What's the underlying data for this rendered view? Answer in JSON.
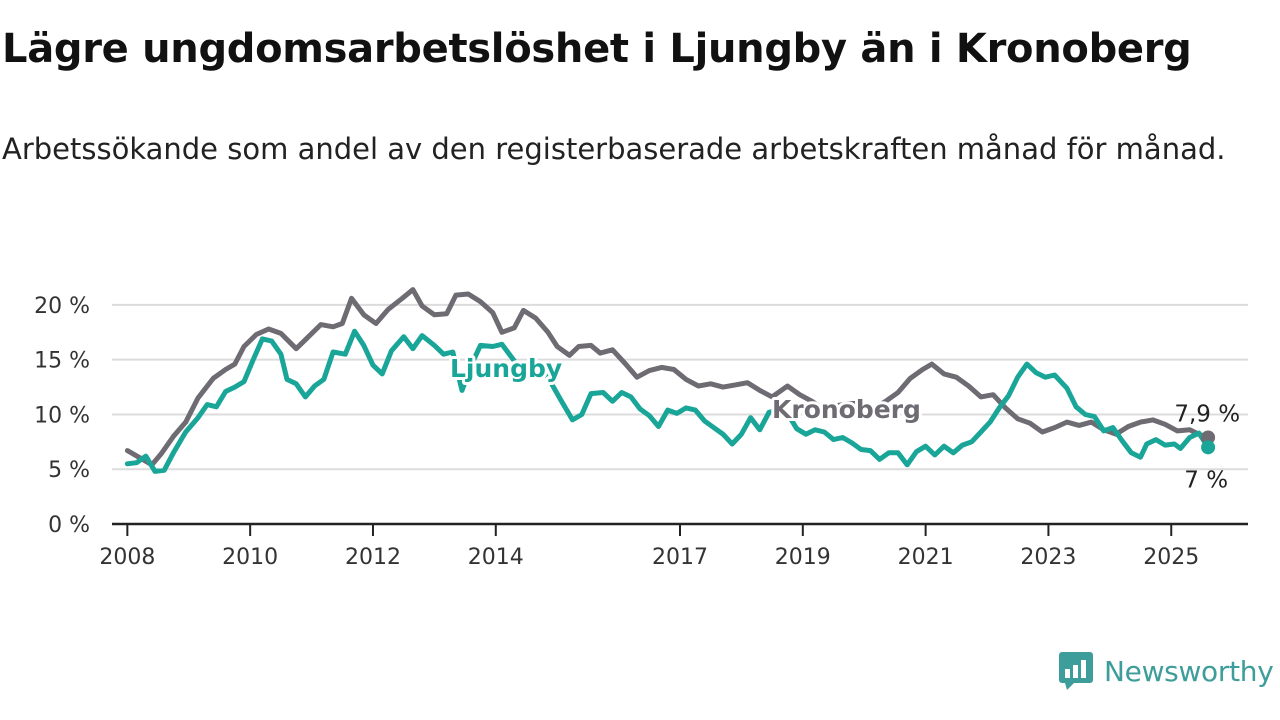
{
  "title": "Lägre ungdomsarbetslöshet i Ljungby än i Kronoberg",
  "subtitle": "Arbetssökande som andel av den registerbaserade arbetskraften månad för månad.",
  "brand": {
    "name": "Newsworthy",
    "color": "#3d9d9a"
  },
  "chart_data": {
    "type": "line",
    "x_unit": "year",
    "x_ticks": [
      2008,
      2010,
      2012,
      2014,
      2017,
      2019,
      2021,
      2023,
      2025
    ],
    "x_tick_labels": [
      "2008",
      "2010",
      "2012",
      "2014",
      "2017",
      "2019",
      "2021",
      "2023",
      "2025"
    ],
    "y_ticks": [
      0,
      5,
      10,
      15,
      20
    ],
    "y_tick_labels": [
      "0 %",
      "5 %",
      "10 %",
      "15 %",
      "20 %"
    ],
    "ylim": [
      0,
      22
    ],
    "xlim": [
      2007.75,
      2026.25
    ],
    "grid": true,
    "series": [
      {
        "name": "Kronoberg",
        "color": "#6e6b73",
        "end_label": "7,9 %",
        "points": [
          [
            2008.0,
            6.7
          ],
          [
            2008.25,
            5.9
          ],
          [
            2008.4,
            5.4
          ],
          [
            2008.55,
            6.4
          ],
          [
            2008.75,
            8.0
          ],
          [
            2008.95,
            9.3
          ],
          [
            2009.15,
            11.5
          ],
          [
            2009.4,
            13.3
          ],
          [
            2009.6,
            14.1
          ],
          [
            2009.75,
            14.6
          ],
          [
            2009.9,
            16.2
          ],
          [
            2010.1,
            17.3
          ],
          [
            2010.3,
            17.8
          ],
          [
            2010.5,
            17.4
          ],
          [
            2010.75,
            16.0
          ],
          [
            2010.95,
            17.1
          ],
          [
            2011.15,
            18.2
          ],
          [
            2011.35,
            18.0
          ],
          [
            2011.5,
            18.3
          ],
          [
            2011.65,
            20.6
          ],
          [
            2011.85,
            19.1
          ],
          [
            2012.05,
            18.3
          ],
          [
            2012.25,
            19.6
          ],
          [
            2012.5,
            20.7
          ],
          [
            2012.65,
            21.4
          ],
          [
            2012.8,
            19.9
          ],
          [
            2013.0,
            19.1
          ],
          [
            2013.2,
            19.2
          ],
          [
            2013.35,
            20.9
          ],
          [
            2013.55,
            21.0
          ],
          [
            2013.75,
            20.3
          ],
          [
            2013.95,
            19.3
          ],
          [
            2014.1,
            17.5
          ],
          [
            2014.3,
            17.9
          ],
          [
            2014.45,
            19.5
          ],
          [
            2014.65,
            18.8
          ],
          [
            2014.85,
            17.5
          ],
          [
            2015.0,
            16.2
          ],
          [
            2015.2,
            15.4
          ],
          [
            2015.35,
            16.2
          ],
          [
            2015.55,
            16.3
          ],
          [
            2015.7,
            15.6
          ],
          [
            2015.9,
            15.9
          ],
          [
            2016.1,
            14.7
          ],
          [
            2016.3,
            13.4
          ],
          [
            2016.5,
            14.0
          ],
          [
            2016.7,
            14.3
          ],
          [
            2016.9,
            14.1
          ],
          [
            2017.1,
            13.2
          ],
          [
            2017.3,
            12.6
          ],
          [
            2017.5,
            12.8
          ],
          [
            2017.7,
            12.5
          ],
          [
            2017.9,
            12.7
          ],
          [
            2018.1,
            12.9
          ],
          [
            2018.3,
            12.2
          ],
          [
            2018.5,
            11.6
          ],
          [
            2018.75,
            12.6
          ],
          [
            2018.95,
            11.8
          ],
          [
            2019.15,
            11.2
          ],
          [
            2019.35,
            10.4
          ],
          [
            2019.55,
            10.8
          ],
          [
            2019.75,
            11.0
          ],
          [
            2019.95,
            11.0
          ],
          [
            2020.15,
            10.5
          ],
          [
            2020.35,
            11.2
          ],
          [
            2020.55,
            12.0
          ],
          [
            2020.75,
            13.3
          ],
          [
            2020.95,
            14.1
          ],
          [
            2021.1,
            14.6
          ],
          [
            2021.3,
            13.7
          ],
          [
            2021.5,
            13.4
          ],
          [
            2021.7,
            12.6
          ],
          [
            2021.9,
            11.6
          ],
          [
            2022.1,
            11.8
          ],
          [
            2022.3,
            10.6
          ],
          [
            2022.5,
            9.6
          ],
          [
            2022.7,
            9.2
          ],
          [
            2022.9,
            8.4
          ],
          [
            2023.1,
            8.8
          ],
          [
            2023.3,
            9.3
          ],
          [
            2023.5,
            9.0
          ],
          [
            2023.7,
            9.3
          ],
          [
            2023.9,
            8.6
          ],
          [
            2024.1,
            8.2
          ],
          [
            2024.3,
            8.9
          ],
          [
            2024.5,
            9.3
          ],
          [
            2024.7,
            9.5
          ],
          [
            2024.9,
            9.1
          ],
          [
            2025.1,
            8.5
          ],
          [
            2025.3,
            8.6
          ],
          [
            2025.45,
            8.2
          ],
          [
            2025.6,
            7.9
          ]
        ]
      },
      {
        "name": "Ljungby",
        "color": "#1aa599",
        "end_label": "7 %",
        "points": [
          [
            2008.0,
            5.5
          ],
          [
            2008.15,
            5.6
          ],
          [
            2008.3,
            6.2
          ],
          [
            2008.45,
            4.8
          ],
          [
            2008.6,
            4.9
          ],
          [
            2008.75,
            6.5
          ],
          [
            2008.95,
            8.4
          ],
          [
            2009.15,
            9.7
          ],
          [
            2009.3,
            10.9
          ],
          [
            2009.45,
            10.7
          ],
          [
            2009.6,
            12.1
          ],
          [
            2009.75,
            12.5
          ],
          [
            2009.9,
            13.0
          ],
          [
            2010.05,
            15.0
          ],
          [
            2010.2,
            16.9
          ],
          [
            2010.35,
            16.7
          ],
          [
            2010.5,
            15.5
          ],
          [
            2010.6,
            13.2
          ],
          [
            2010.75,
            12.8
          ],
          [
            2010.9,
            11.6
          ],
          [
            2011.05,
            12.6
          ],
          [
            2011.2,
            13.2
          ],
          [
            2011.35,
            15.7
          ],
          [
            2011.55,
            15.5
          ],
          [
            2011.7,
            17.6
          ],
          [
            2011.85,
            16.3
          ],
          [
            2012.0,
            14.5
          ],
          [
            2012.15,
            13.7
          ],
          [
            2012.3,
            15.8
          ],
          [
            2012.5,
            17.1
          ],
          [
            2012.65,
            16.0
          ],
          [
            2012.8,
            17.2
          ],
          [
            2013.0,
            16.3
          ],
          [
            2013.15,
            15.5
          ],
          [
            2013.3,
            15.7
          ],
          [
            2013.45,
            12.2
          ],
          [
            2013.6,
            14.5
          ],
          [
            2013.75,
            16.3
          ],
          [
            2013.95,
            16.2
          ],
          [
            2014.1,
            16.4
          ],
          [
            2014.3,
            14.9
          ],
          [
            2014.45,
            13.1
          ],
          [
            2014.6,
            14.8
          ],
          [
            2014.75,
            14.3
          ],
          [
            2014.9,
            12.9
          ],
          [
            2015.05,
            11.4
          ],
          [
            2015.25,
            9.5
          ],
          [
            2015.4,
            10.0
          ],
          [
            2015.55,
            11.9
          ],
          [
            2015.75,
            12.0
          ],
          [
            2015.9,
            11.2
          ],
          [
            2016.05,
            12.0
          ],
          [
            2016.2,
            11.6
          ],
          [
            2016.35,
            10.5
          ],
          [
            2016.5,
            9.9
          ],
          [
            2016.65,
            8.9
          ],
          [
            2016.8,
            10.4
          ],
          [
            2016.95,
            10.1
          ],
          [
            2017.1,
            10.6
          ],
          [
            2017.25,
            10.4
          ],
          [
            2017.4,
            9.4
          ],
          [
            2017.55,
            8.8
          ],
          [
            2017.7,
            8.2
          ],
          [
            2017.85,
            7.3
          ],
          [
            2018.0,
            8.2
          ],
          [
            2018.15,
            9.7
          ],
          [
            2018.3,
            8.6
          ],
          [
            2018.45,
            10.2
          ],
          [
            2018.6,
            10.4
          ],
          [
            2018.75,
            10.1
          ],
          [
            2018.9,
            8.7
          ],
          [
            2019.05,
            8.2
          ],
          [
            2019.2,
            8.6
          ],
          [
            2019.35,
            8.4
          ],
          [
            2019.5,
            7.7
          ],
          [
            2019.65,
            7.9
          ],
          [
            2019.8,
            7.4
          ],
          [
            2019.95,
            6.8
          ],
          [
            2020.1,
            6.7
          ],
          [
            2020.25,
            5.9
          ],
          [
            2020.4,
            6.5
          ],
          [
            2020.55,
            6.5
          ],
          [
            2020.7,
            5.4
          ],
          [
            2020.85,
            6.6
          ],
          [
            2021.0,
            7.1
          ],
          [
            2021.15,
            6.3
          ],
          [
            2021.3,
            7.1
          ],
          [
            2021.45,
            6.5
          ],
          [
            2021.6,
            7.2
          ],
          [
            2021.75,
            7.5
          ],
          [
            2021.9,
            8.4
          ],
          [
            2022.05,
            9.3
          ],
          [
            2022.2,
            10.6
          ],
          [
            2022.35,
            11.7
          ],
          [
            2022.5,
            13.4
          ],
          [
            2022.65,
            14.6
          ],
          [
            2022.8,
            13.8
          ],
          [
            2022.95,
            13.4
          ],
          [
            2023.1,
            13.6
          ],
          [
            2023.3,
            12.4
          ],
          [
            2023.45,
            10.7
          ],
          [
            2023.6,
            10.0
          ],
          [
            2023.75,
            9.8
          ],
          [
            2023.9,
            8.5
          ],
          [
            2024.05,
            8.8
          ],
          [
            2024.2,
            7.6
          ],
          [
            2024.35,
            6.5
          ],
          [
            2024.5,
            6.1
          ],
          [
            2024.6,
            7.3
          ],
          [
            2024.75,
            7.7
          ],
          [
            2024.9,
            7.2
          ],
          [
            2025.05,
            7.3
          ],
          [
            2025.15,
            6.9
          ],
          [
            2025.3,
            7.9
          ],
          [
            2025.45,
            8.3
          ],
          [
            2025.6,
            7.0
          ]
        ]
      }
    ]
  }
}
